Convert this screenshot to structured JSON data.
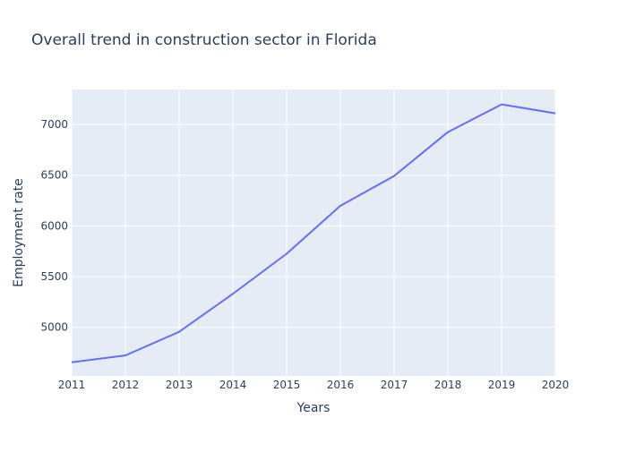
{
  "chart_data": {
    "type": "line",
    "title": "Overall trend in construction sector in Florida",
    "xlabel": "Years",
    "ylabel": "Employment rate",
    "x": [
      2011,
      2012,
      2013,
      2014,
      2015,
      2016,
      2017,
      2018,
      2019,
      2020
    ],
    "series": [
      {
        "values": [
          4655,
          4722,
          4955,
          5330,
          5725,
          6198,
          6492,
          6925,
          7198,
          7110
        ],
        "color": "#636efa"
      }
    ],
    "xlim": [
      2011,
      2020
    ],
    "ylim": [
      4520,
      7345
    ],
    "xticks": [
      2011,
      2012,
      2013,
      2014,
      2015,
      2016,
      2017,
      2018,
      2019,
      2020
    ],
    "yticks": [
      5000,
      5500,
      6000,
      6500,
      7000
    ],
    "grid": true,
    "plot_background": "#e5ecf6",
    "grid_color": "#ffffff",
    "text_color": "#2a3f5f"
  }
}
